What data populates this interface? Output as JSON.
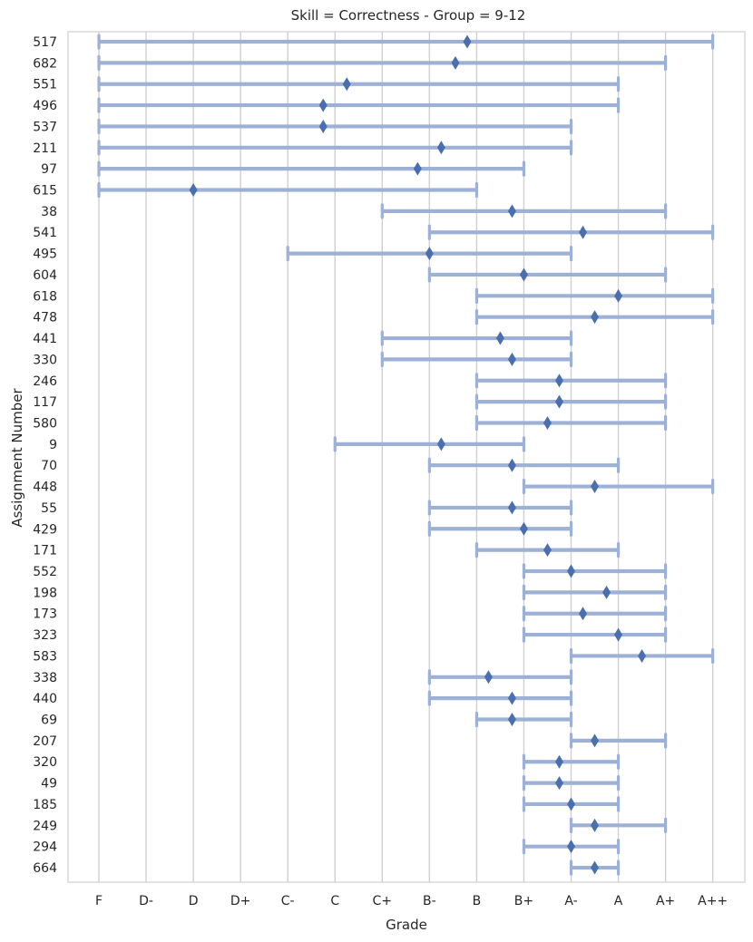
{
  "chart_data": {
    "type": "range",
    "title": "Skill = Correctness - Group = 9-12",
    "xlabel": "Grade",
    "ylabel": "Assignment Number",
    "grade_scale": [
      "F",
      "D-",
      "D",
      "D+",
      "C-",
      "C",
      "C+",
      "B-",
      "B",
      "B+",
      "A-",
      "A",
      "A+",
      "A++"
    ],
    "grid": "vertical",
    "colors": {
      "range": "#9db0d6",
      "marker": "#4a6fae",
      "grid": "#d0d0d0",
      "frame": "#cfcfcf"
    },
    "rows": [
      {
        "assignment": "517",
        "min": "F",
        "max": "A++",
        "mean": 7.8
      },
      {
        "assignment": "682",
        "min": "F",
        "max": "A+",
        "mean": 7.55
      },
      {
        "assignment": "551",
        "min": "F",
        "max": "A",
        "mean": 5.25
      },
      {
        "assignment": "496",
        "min": "F",
        "max": "A",
        "mean": 4.75
      },
      {
        "assignment": "537",
        "min": "F",
        "max": "A-",
        "mean": 4.75
      },
      {
        "assignment": "211",
        "min": "F",
        "max": "A-",
        "mean": 7.25
      },
      {
        "assignment": "97",
        "min": "F",
        "max": "B+",
        "mean": 6.75
      },
      {
        "assignment": "615",
        "min": "F",
        "max": "B",
        "mean": 2.0
      },
      {
        "assignment": "38",
        "min": "C+",
        "max": "A+",
        "mean": 8.75
      },
      {
        "assignment": "541",
        "min": "B-",
        "max": "A++",
        "mean": 10.25
      },
      {
        "assignment": "495",
        "min": "C-",
        "max": "A-",
        "mean": 7.0
      },
      {
        "assignment": "604",
        "min": "B-",
        "max": "A+",
        "mean": 9.0
      },
      {
        "assignment": "618",
        "min": "B",
        "max": "A++",
        "mean": 11.0
      },
      {
        "assignment": "478",
        "min": "B",
        "max": "A++",
        "mean": 10.5
      },
      {
        "assignment": "441",
        "min": "C+",
        "max": "A-",
        "mean": 8.5
      },
      {
        "assignment": "330",
        "min": "C+",
        "max": "A-",
        "mean": 8.75
      },
      {
        "assignment": "246",
        "min": "B",
        "max": "A+",
        "mean": 9.75
      },
      {
        "assignment": "117",
        "min": "B",
        "max": "A+",
        "mean": 9.75
      },
      {
        "assignment": "580",
        "min": "B",
        "max": "A+",
        "mean": 9.5
      },
      {
        "assignment": "9",
        "min": "C",
        "max": "B+",
        "mean": 7.25
      },
      {
        "assignment": "70",
        "min": "B-",
        "max": "A",
        "mean": 8.75
      },
      {
        "assignment": "448",
        "min": "B+",
        "max": "A++",
        "mean": 10.5
      },
      {
        "assignment": "55",
        "min": "B-",
        "max": "A-",
        "mean": 8.75
      },
      {
        "assignment": "429",
        "min": "B-",
        "max": "A-",
        "mean": 9.0
      },
      {
        "assignment": "171",
        "min": "B",
        "max": "A",
        "mean": 9.5
      },
      {
        "assignment": "552",
        "min": "B+",
        "max": "A+",
        "mean": 10.0
      },
      {
        "assignment": "198",
        "min": "B+",
        "max": "A+",
        "mean": 10.75
      },
      {
        "assignment": "173",
        "min": "B+",
        "max": "A+",
        "mean": 10.25
      },
      {
        "assignment": "323",
        "min": "B+",
        "max": "A+",
        "mean": 11.0
      },
      {
        "assignment": "583",
        "min": "A-",
        "max": "A++",
        "mean": 11.5
      },
      {
        "assignment": "338",
        "min": "B-",
        "max": "A-",
        "mean": 8.25
      },
      {
        "assignment": "440",
        "min": "B-",
        "max": "A-",
        "mean": 8.75
      },
      {
        "assignment": "69",
        "min": "B",
        "max": "A-",
        "mean": 8.75
      },
      {
        "assignment": "207",
        "min": "A-",
        "max": "A+",
        "mean": 10.5
      },
      {
        "assignment": "320",
        "min": "B+",
        "max": "A",
        "mean": 9.75
      },
      {
        "assignment": "49",
        "min": "B+",
        "max": "A",
        "mean": 9.75
      },
      {
        "assignment": "185",
        "min": "B+",
        "max": "A",
        "mean": 10.0
      },
      {
        "assignment": "249",
        "min": "A-",
        "max": "A+",
        "mean": 10.5
      },
      {
        "assignment": "294",
        "min": "B+",
        "max": "A",
        "mean": 10.0
      },
      {
        "assignment": "664",
        "min": "A-",
        "max": "A",
        "mean": 10.5
      }
    ]
  }
}
